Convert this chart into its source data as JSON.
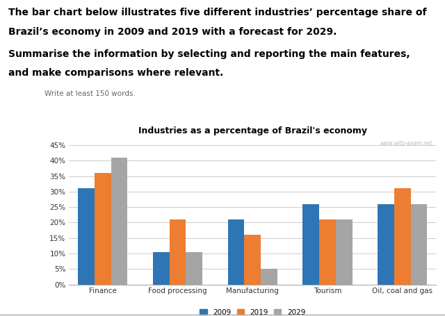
{
  "title": "Industries as a percentage of Brazil's economy",
  "watermark": "www.ielts-exam.net",
  "categories": [
    "Finance",
    "Food processing",
    "Manufacturing",
    "Tourism",
    "Oil, coal and gas"
  ],
  "years": [
    "2009",
    "2019",
    "2029"
  ],
  "values": {
    "2009": [
      31,
      10.5,
      21,
      26,
      26
    ],
    "2019": [
      36,
      21,
      16,
      21,
      31
    ],
    "2029": [
      41,
      10.5,
      5,
      21,
      26
    ]
  },
  "colors": {
    "2009": "#2E75B6",
    "2019": "#ED7D31",
    "2029": "#A5A5A5"
  },
  "ylim": [
    0,
    47
  ],
  "yticks": [
    0,
    5,
    10,
    15,
    20,
    25,
    30,
    35,
    40,
    45
  ],
  "yticklabels": [
    "0%",
    "5%",
    "10%",
    "15%",
    "20%",
    "25%",
    "30%",
    "35%",
    "40%",
    "45%"
  ],
  "background_color": "#FFFFFF",
  "header_bold1": "The bar chart below illustrates five different industries’ percentage share of",
  "header_bold2": "Brazil’s economy in 2009 and 2019 with a forecast for 2029.",
  "header_bold3": "Summarise the information by selecting and reporting the main features,",
  "header_bold4": "and make comparisons where relevant.",
  "subtext": "Write at least 150 words.",
  "bar_width": 0.22,
  "grid_color": "#CCCCCC"
}
